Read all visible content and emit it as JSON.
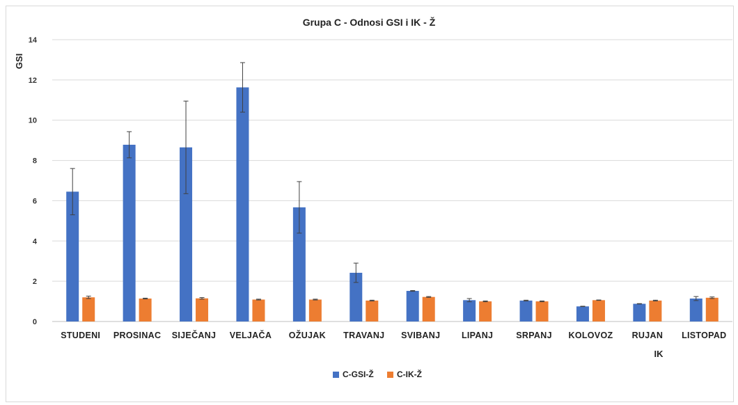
{
  "chart_data": {
    "type": "bar",
    "title": "Grupa C - Odnosi GSI i IK - Ž",
    "ylabel": "GSI",
    "xlabel": "IK",
    "ylim": [
      0,
      14
    ],
    "yticks": [
      0,
      2,
      4,
      6,
      8,
      10,
      12,
      14
    ],
    "grid": true,
    "legend_position": "bottom",
    "categories": [
      "STUDENI",
      "PROSINAC",
      "SIJEČANJ",
      "VELJAČA",
      "OŽUJAK",
      "TRAVANJ",
      "SVIBANJ",
      "LIPANJ",
      "SRPANJ",
      "KOLOVOZ",
      "RUJAN",
      "LISTOPAD"
    ],
    "series": [
      {
        "name": "C-GSI-Ž",
        "color": "#4472C4",
        "values": [
          6.45,
          8.78,
          8.65,
          11.63,
          5.67,
          2.42,
          1.52,
          1.06,
          1.04,
          0.75,
          0.88,
          1.14
        ],
        "error": [
          1.15,
          0.65,
          2.3,
          1.23,
          1.28,
          0.48,
          0.02,
          0.08,
          0.02,
          0.01,
          0.01,
          0.1
        ]
      },
      {
        "name": "C-IK-Ž",
        "color": "#ED7D31",
        "values": [
          1.2,
          1.14,
          1.15,
          1.09,
          1.09,
          1.04,
          1.22,
          1.0,
          1.0,
          1.06,
          1.04,
          1.18
        ],
        "error": [
          0.06,
          0.02,
          0.04,
          0.02,
          0.02,
          0.02,
          0.02,
          0.02,
          0.02,
          0.01,
          0.02,
          0.04
        ]
      }
    ]
  }
}
